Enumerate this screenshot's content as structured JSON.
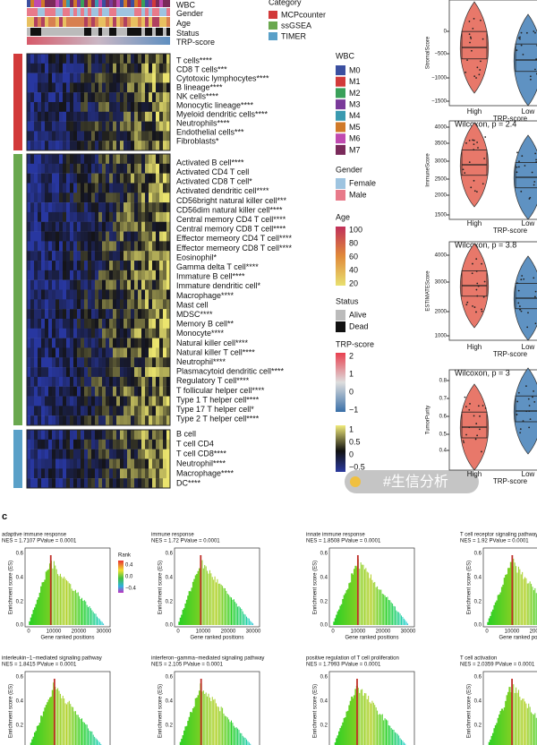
{
  "heatmap": {
    "annotations": [
      "WBC",
      "Gender",
      "Age",
      "Status",
      "TRP-score"
    ],
    "category_legend": {
      "title": "Category",
      "items": [
        "MCPcounter",
        "ssGSEA",
        "TIMER"
      ]
    },
    "rows": {
      "mcpcounter": [
        "T cells****",
        "CD8 T cells***",
        "Cytotoxic lymphocytes****",
        "B lineage****",
        "NK cells****",
        "Monocytic lineage****",
        "Myeloid dendritic cells****",
        "Neutrophils****",
        "Endothelial cells***",
        "Fibroblasts*"
      ],
      "ssgsea": [
        "Activated B cell****",
        "Activated CD4 T cell",
        "Activated CD8 T cell*",
        "Activated dendritic cell****",
        "CD56bright natural killer cell***",
        "CD56dim natural killer cell****",
        "Central memory CD4 T cell****",
        "Central memory CD8 T cell****",
        "Effector memeory CD4 T cell****",
        "Effector memeory CD8 T cell****",
        "Eosinophil*",
        "Gamma delta T cell****",
        "Immature  B cell****",
        "Immature dendritic cell*",
        "Macrophage****",
        "Mast cell",
        "MDSC****",
        "Memory B cell**",
        "Monocyte****",
        "Natural killer cell****",
        "Natural killer T cell****",
        "Neutrophil****",
        "Plasmacytoid dendritic cell****",
        "Regulatory T cell****",
        "T follicular helper cell****",
        "Type 1 T helper cell****",
        "Type 17 T helper cell*",
        "Type 2 T helper cell****"
      ],
      "timer": [
        "B cell",
        "T cell CD4",
        "T cell CD8****",
        "Neutrophil****",
        "Macrophage****",
        "DC****"
      ]
    },
    "legends": {
      "wbc": {
        "title": "WBC",
        "items": [
          "M0",
          "M1",
          "M2",
          "M3",
          "M4",
          "M5",
          "M6",
          "M7"
        ]
      },
      "gender": {
        "title": "Gender",
        "items": [
          "Female",
          "Male"
        ]
      },
      "age": {
        "title": "Age",
        "ticks": [
          "100",
          "80",
          "60",
          "40",
          "20"
        ]
      },
      "status": {
        "title": "Status",
        "items": [
          "Alive",
          "Dead"
        ]
      },
      "trp": {
        "title": "TRP-score",
        "ticks": [
          "2",
          "1",
          "0",
          "−1"
        ]
      },
      "expression": {
        "ticks": [
          "1",
          "0.5",
          "0",
          "−0.5"
        ]
      }
    }
  },
  "violins": [
    {
      "ylabel": "StromalScore",
      "yticks": [
        "0",
        "−500",
        "−1000",
        "−1500"
      ]
    },
    {
      "test": "Wilcoxon, p = 2.4",
      "ylabel": "ImmuneScore",
      "yticks": [
        "4000",
        "3500",
        "3000",
        "2500",
        "2000",
        "1500"
      ]
    },
    {
      "test": "Wilcoxon, p = 3.8",
      "ylabel": "ESTIMATEScore",
      "yticks": [
        "4000",
        "3000",
        "2000",
        "1000"
      ]
    },
    {
      "test": "Wilcoxon, p = 3",
      "ylabel": "TumorPurity",
      "yticks": [
        "0.8",
        "0.7",
        "0.6",
        "0.5",
        "0.4"
      ]
    }
  ],
  "violin_groups": [
    "High",
    "Low"
  ],
  "violin_xlabel": "TRP-score",
  "watermark": "#生信分析",
  "panel_label": "c",
  "gsea": {
    "ylabel": "Enrichment score (ES)",
    "xlabel": "Gene ranked positions",
    "yticks": [
      "0.6",
      "0.4",
      "0.2",
      "0.0"
    ],
    "xticks": [
      "0",
      "10000",
      "20000",
      "30000"
    ],
    "rank_legend": {
      "title": "Rank",
      "ticks": [
        "0.4",
        "0.0",
        "−0.4"
      ]
    },
    "panels": [
      {
        "title": "adaptive immune response",
        "stats": "NES = 1.7107  PValue = 0.0001"
      },
      {
        "title": "immune response",
        "stats": "NES = 1.72  PValue = 0.0001"
      },
      {
        "title": "innate immune response",
        "stats": "NES = 1.8508  PValue = 0.0001"
      },
      {
        "title": "T cell receptor signaling pathway",
        "stats": "NES = 1.92  PValue = 0.0001"
      },
      {
        "title": "interleukin−1−mediated signaling pathway",
        "stats": "NES = 1.8415  PValue = 0.0001"
      },
      {
        "title": "interferon−gamma−mediated signaling pathway",
        "stats": "NES = 2.105  PValue = 0.0001"
      },
      {
        "title": "positive regulation of T cell proliferation",
        "stats": "NES = 1.7993  PValue = 0.0001"
      },
      {
        "title": "T cell activation",
        "stats": "NES = 2.0359  PValue = 0.0001"
      }
    ]
  }
}
